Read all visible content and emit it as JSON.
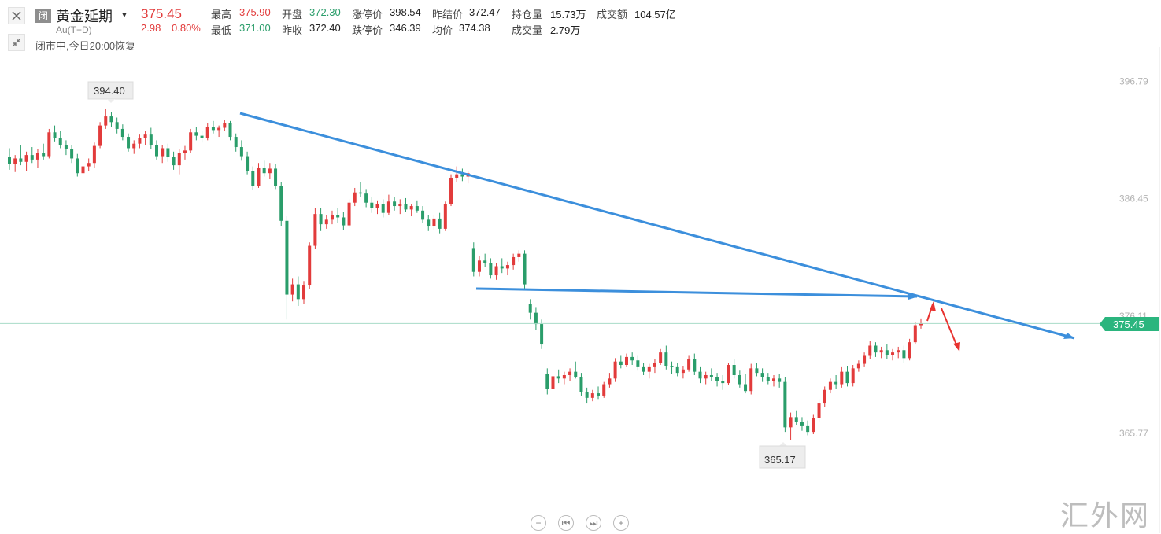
{
  "header": {
    "status_tag": "闭",
    "title": "黄金延期",
    "subtitle": "Au(T+D)",
    "market_status": "闭市中,今日20:00恢复",
    "price": "375.45",
    "change": "2.98",
    "change_pct": "0.80%"
  },
  "quotes": {
    "high_label": "最高",
    "high": "375.90",
    "low_label": "最低",
    "low": "371.00",
    "open_label": "开盘",
    "open": "372.30",
    "prev_close_label": "昨收",
    "prev_close": "372.40",
    "limit_up_label": "涨停价",
    "limit_up": "398.54",
    "limit_down_label": "跌停价",
    "limit_down": "346.39",
    "prev_settle_label": "昨结价",
    "prev_settle": "372.47",
    "avg_label": "均价",
    "avg": "374.38",
    "open_interest_label": "持仓量",
    "open_interest": "15.73万",
    "volume_label": "成交量",
    "volume": "2.79万",
    "turnover_label": "成交额",
    "turnover": "104.57亿"
  },
  "colors": {
    "up": "#e23b3b",
    "down": "#2a9d6a",
    "trendline": "#3c8fdc",
    "arrow": "#e8322f",
    "price_line": "#a8dcc8",
    "price_badge": "#2bb57e"
  },
  "chart_data": {
    "type": "candlestick",
    "ylim": [
      363.5,
      398.0
    ],
    "y_ticks": [
      "396.79",
      "386.45",
      "376.11",
      "365.77"
    ],
    "y_tick_values": [
      396.79,
      386.45,
      376.11,
      365.77
    ],
    "current_price": "375.45",
    "max_label": "394.40",
    "min_label": "365.17",
    "candles": [
      [
        390.1,
        390.9,
        389.0,
        389.5
      ],
      [
        389.5,
        390.3,
        388.8,
        390.0
      ],
      [
        390.0,
        391.2,
        389.4,
        389.7
      ],
      [
        389.7,
        390.6,
        388.9,
        390.3
      ],
      [
        390.3,
        391.0,
        389.6,
        389.9
      ],
      [
        389.9,
        390.8,
        389.2,
        390.5
      ],
      [
        390.5,
        391.3,
        389.9,
        390.2
      ],
      [
        390.2,
        392.6,
        390.0,
        392.3
      ],
      [
        392.3,
        392.9,
        391.5,
        391.8
      ],
      [
        391.8,
        392.4,
        390.9,
        391.2
      ],
      [
        391.2,
        391.6,
        390.3,
        390.8
      ],
      [
        390.8,
        391.2,
        389.6,
        390.0
      ],
      [
        390.0,
        390.4,
        388.4,
        388.7
      ],
      [
        388.7,
        389.6,
        388.3,
        389.3
      ],
      [
        389.3,
        390.0,
        388.9,
        389.6
      ],
      [
        389.6,
        391.4,
        389.2,
        391.1
      ],
      [
        391.1,
        393.2,
        390.9,
        392.9
      ],
      [
        392.9,
        394.4,
        392.6,
        393.7
      ],
      [
        393.7,
        394.1,
        392.8,
        393.2
      ],
      [
        393.2,
        393.6,
        392.2,
        392.6
      ],
      [
        392.6,
        393.0,
        391.6,
        391.9
      ],
      [
        391.9,
        392.2,
        390.6,
        390.9
      ],
      [
        390.9,
        391.6,
        390.4,
        391.3
      ],
      [
        391.3,
        392.1,
        390.9,
        391.8
      ],
      [
        391.8,
        392.4,
        391.2,
        392.1
      ],
      [
        392.1,
        392.7,
        390.8,
        391.2
      ],
      [
        391.2,
        391.6,
        389.9,
        390.2
      ],
      [
        390.2,
        391.2,
        389.6,
        390.9
      ],
      [
        390.9,
        391.3,
        389.7,
        390.1
      ],
      [
        390.1,
        390.6,
        389.0,
        389.4
      ],
      [
        389.4,
        390.8,
        388.6,
        390.5
      ],
      [
        390.5,
        391.1,
        389.9,
        390.7
      ],
      [
        390.7,
        392.6,
        390.5,
        392.3
      ],
      [
        392.3,
        392.8,
        391.6,
        392.0
      ],
      [
        392.0,
        392.4,
        391.4,
        391.8
      ],
      [
        391.8,
        393.1,
        391.6,
        392.8
      ],
      [
        392.8,
        393.3,
        392.2,
        392.5
      ],
      [
        392.5,
        392.9,
        391.9,
        392.7
      ],
      [
        392.7,
        393.4,
        392.4,
        393.1
      ],
      [
        393.1,
        393.3,
        391.6,
        391.9
      ],
      [
        391.9,
        392.2,
        390.6,
        391.0
      ],
      [
        391.0,
        391.6,
        389.8,
        390.2
      ],
      [
        390.2,
        390.6,
        388.6,
        388.9
      ],
      [
        388.9,
        389.3,
        387.2,
        387.6
      ],
      [
        387.6,
        389.6,
        387.4,
        389.2
      ],
      [
        389.2,
        389.8,
        388.4,
        388.7
      ],
      [
        388.7,
        389.6,
        388.2,
        389.1
      ],
      [
        389.1,
        389.5,
        387.3,
        387.6
      ],
      [
        387.6,
        387.9,
        384.0,
        384.5
      ],
      [
        384.5,
        384.9,
        375.8,
        378.0
      ],
      [
        378.0,
        379.4,
        377.4,
        378.9
      ],
      [
        378.9,
        379.6,
        377.0,
        377.6
      ],
      [
        377.6,
        379.2,
        377.2,
        378.8
      ],
      [
        378.8,
        382.6,
        378.5,
        382.3
      ],
      [
        382.3,
        385.6,
        382.0,
        385.1
      ],
      [
        385.1,
        385.6,
        383.6,
        384.2
      ],
      [
        384.2,
        385.0,
        383.8,
        384.6
      ],
      [
        384.6,
        385.4,
        384.2,
        385.0
      ],
      [
        385.0,
        385.6,
        384.3,
        384.8
      ],
      [
        384.8,
        385.3,
        383.7,
        384.1
      ],
      [
        384.1,
        386.4,
        383.9,
        386.1
      ],
      [
        386.1,
        387.4,
        385.8,
        387.0
      ],
      [
        387.0,
        387.9,
        386.6,
        386.9
      ],
      [
        386.9,
        387.3,
        385.7,
        386.1
      ],
      [
        386.1,
        386.6,
        385.2,
        385.6
      ],
      [
        385.6,
        386.3,
        385.1,
        386.0
      ],
      [
        386.0,
        386.4,
        384.8,
        385.2
      ],
      [
        385.2,
        386.8,
        385.0,
        386.2
      ],
      [
        386.2,
        386.6,
        385.4,
        385.8
      ],
      [
        385.8,
        386.4,
        385.1,
        386.0
      ],
      [
        386.0,
        386.5,
        385.3,
        385.5
      ],
      [
        385.5,
        386.0,
        384.9,
        385.8
      ],
      [
        385.8,
        386.3,
        385.2,
        385.4
      ],
      [
        385.4,
        385.8,
        384.3,
        384.6
      ],
      [
        384.6,
        385.0,
        383.6,
        384.0
      ],
      [
        384.0,
        385.0,
        383.7,
        384.7
      ],
      [
        384.7,
        385.2,
        383.4,
        383.8
      ],
      [
        383.8,
        386.2,
        383.6,
        386.0
      ],
      [
        386.0,
        388.6,
        385.8,
        388.3
      ],
      [
        388.3,
        389.3,
        387.9,
        388.6
      ],
      [
        388.6,
        389.1,
        388.0,
        388.4
      ],
      [
        388.4,
        388.9,
        387.8,
        388.7
      ],
      [
        382.1,
        382.6,
        379.6,
        380.0
      ],
      [
        380.0,
        381.4,
        379.6,
        381.0
      ],
      [
        381.0,
        381.6,
        380.4,
        380.8
      ],
      [
        380.8,
        381.2,
        379.4,
        379.7
      ],
      [
        379.7,
        380.8,
        379.3,
        380.5
      ],
      [
        380.5,
        381.2,
        379.9,
        380.3
      ],
      [
        380.3,
        380.9,
        379.7,
        380.6
      ],
      [
        380.6,
        381.6,
        380.2,
        381.3
      ],
      [
        381.3,
        381.9,
        380.9,
        381.6
      ],
      [
        381.6,
        381.9,
        378.4,
        378.9
      ],
      [
        377.2,
        377.6,
        375.8,
        376.4
      ],
      [
        376.4,
        376.9,
        374.9,
        375.4
      ],
      [
        375.4,
        375.8,
        373.2,
        373.6
      ],
      [
        371.0,
        371.5,
        369.2,
        369.7
      ],
      [
        369.7,
        371.2,
        369.4,
        370.8
      ],
      [
        370.8,
        371.4,
        370.2,
        370.6
      ],
      [
        370.6,
        371.2,
        370.1,
        370.9
      ],
      [
        370.9,
        371.5,
        370.4,
        371.2
      ],
      [
        371.2,
        372.1,
        370.6,
        370.7
      ],
      [
        370.7,
        371.1,
        369.1,
        369.4
      ],
      [
        369.4,
        369.8,
        368.4,
        368.9
      ],
      [
        368.9,
        369.6,
        368.6,
        369.3
      ],
      [
        369.3,
        369.9,
        368.8,
        369.1
      ],
      [
        369.1,
        370.3,
        368.9,
        370.1
      ],
      [
        370.1,
        371.1,
        369.8,
        370.6
      ],
      [
        370.6,
        372.4,
        370.3,
        372.1
      ],
      [
        372.1,
        372.6,
        371.5,
        371.8
      ],
      [
        371.8,
        372.8,
        371.6,
        372.5
      ],
      [
        372.5,
        372.9,
        371.8,
        372.2
      ],
      [
        372.2,
        372.6,
        371.3,
        371.6
      ],
      [
        371.6,
        372.0,
        370.9,
        371.2
      ],
      [
        371.2,
        371.9,
        370.6,
        371.6
      ],
      [
        371.6,
        372.3,
        371.1,
        372.0
      ],
      [
        372.0,
        373.2,
        371.8,
        372.9
      ],
      [
        372.9,
        373.5,
        371.4,
        371.7
      ],
      [
        371.7,
        372.1,
        371.0,
        371.6
      ],
      [
        371.6,
        372.0,
        370.8,
        371.1
      ],
      [
        371.1,
        371.7,
        370.6,
        371.4
      ],
      [
        371.4,
        372.6,
        371.2,
        372.3
      ],
      [
        372.3,
        372.8,
        370.9,
        371.2
      ],
      [
        371.2,
        371.6,
        370.2,
        370.6
      ],
      [
        370.6,
        371.2,
        370.1,
        370.9
      ],
      [
        370.9,
        371.5,
        370.4,
        370.7
      ],
      [
        370.7,
        371.1,
        369.9,
        370.4
      ],
      [
        370.4,
        370.9,
        369.6,
        370.2
      ],
      [
        370.2,
        372.0,
        370.0,
        371.8
      ],
      [
        371.8,
        372.3,
        370.6,
        370.9
      ],
      [
        370.9,
        371.3,
        369.8,
        370.1
      ],
      [
        370.1,
        371.0,
        369.3,
        369.5
      ],
      [
        369.5,
        371.9,
        369.2,
        371.5
      ],
      [
        371.5,
        372.0,
        370.8,
        371.1
      ],
      [
        371.1,
        371.5,
        370.3,
        370.7
      ],
      [
        370.7,
        371.1,
        370.1,
        370.4
      ],
      [
        370.4,
        370.9,
        369.9,
        370.6
      ],
      [
        370.6,
        371.0,
        369.8,
        370.3
      ],
      [
        370.3,
        370.7,
        365.9,
        366.3
      ],
      [
        366.3,
        367.6,
        365.17,
        367.2
      ],
      [
        367.2,
        367.8,
        366.5,
        366.8
      ],
      [
        366.8,
        367.2,
        366.0,
        366.4
      ],
      [
        366.4,
        366.9,
        365.6,
        365.9
      ],
      [
        365.9,
        367.4,
        365.7,
        367.1
      ],
      [
        367.1,
        368.8,
        366.8,
        368.4
      ],
      [
        368.4,
        369.9,
        368.1,
        369.6
      ],
      [
        369.6,
        370.6,
        369.3,
        370.3
      ],
      [
        370.3,
        370.9,
        369.7,
        370.1
      ],
      [
        370.1,
        371.6,
        369.8,
        371.2
      ],
      [
        371.2,
        371.7,
        369.9,
        370.2
      ],
      [
        370.2,
        371.8,
        369.9,
        371.5
      ],
      [
        371.5,
        372.2,
        371.2,
        371.9
      ],
      [
        371.9,
        372.9,
        371.6,
        372.6
      ],
      [
        372.6,
        373.9,
        372.3,
        373.5
      ],
      [
        373.5,
        373.8,
        372.5,
        372.9
      ],
      [
        372.9,
        373.4,
        372.4,
        373.1
      ],
      [
        373.1,
        373.6,
        372.3,
        372.7
      ],
      [
        372.7,
        373.2,
        372.2,
        372.9
      ],
      [
        372.9,
        373.4,
        372.4,
        373.1
      ],
      [
        373.1,
        373.5,
        372.0,
        372.4
      ],
      [
        372.4,
        374.1,
        372.2,
        373.8
      ],
      [
        373.8,
        375.6,
        373.6,
        375.3
      ],
      [
        375.3,
        375.9,
        375.0,
        375.45
      ]
    ]
  }
}
